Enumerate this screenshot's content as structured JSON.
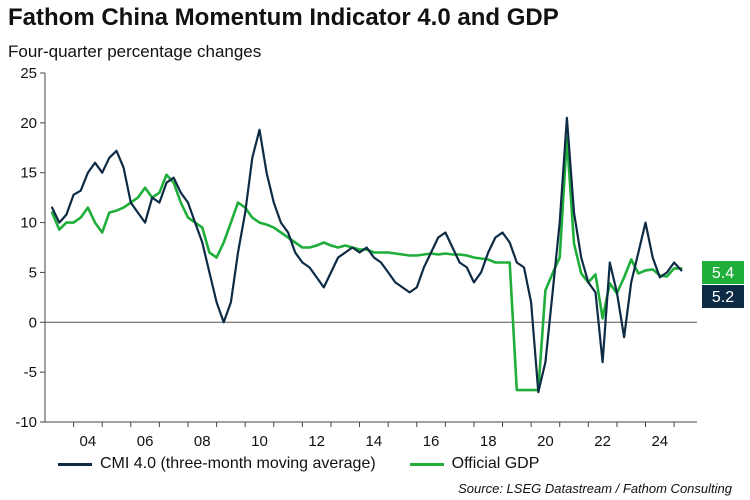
{
  "chart_data": {
    "type": "line",
    "title": "Fathom China Momentum Indicator 4.0 and GDP",
    "subtitle": "Four-quarter percentage changes",
    "xlabel": "",
    "ylabel": "",
    "xlim": [
      2003,
      2025.8
    ],
    "ylim": [
      -10,
      25
    ],
    "yticks": [
      -10,
      -5,
      0,
      5,
      10,
      15,
      20,
      25
    ],
    "xticks": [
      2004,
      2006,
      2008,
      2010,
      2012,
      2014,
      2016,
      2018,
      2020,
      2022,
      2024
    ],
    "xtick_labels": [
      "04",
      "06",
      "08",
      "10",
      "12",
      "14",
      "16",
      "18",
      "20",
      "22",
      "24"
    ],
    "legend_position": "bottom",
    "source": "Source: LSEG Datastream / Fathom Consulting",
    "series": [
      {
        "name": "CMI 4.0 (three-month moving average)",
        "color": "#0d2b45",
        "end_label": "5.2",
        "points": [
          [
            2003.25,
            11.5
          ],
          [
            2003.5,
            10.0
          ],
          [
            2003.75,
            10.8
          ],
          [
            2004.0,
            12.8
          ],
          [
            2004.25,
            13.2
          ],
          [
            2004.5,
            15.0
          ],
          [
            2004.75,
            16.0
          ],
          [
            2005.0,
            15.0
          ],
          [
            2005.25,
            16.5
          ],
          [
            2005.5,
            17.2
          ],
          [
            2005.75,
            15.5
          ],
          [
            2006.0,
            12.0
          ],
          [
            2006.25,
            11.0
          ],
          [
            2006.5,
            10.0
          ],
          [
            2006.75,
            12.5
          ],
          [
            2007.0,
            12.0
          ],
          [
            2007.25,
            14.0
          ],
          [
            2007.5,
            14.5
          ],
          [
            2007.75,
            13.0
          ],
          [
            2008.0,
            12.0
          ],
          [
            2008.25,
            10.0
          ],
          [
            2008.5,
            8.0
          ],
          [
            2008.75,
            5.0
          ],
          [
            2009.0,
            2.0
          ],
          [
            2009.25,
            0.0
          ],
          [
            2009.5,
            2.0
          ],
          [
            2009.75,
            7.0
          ],
          [
            2010.0,
            11.0
          ],
          [
            2010.25,
            16.5
          ],
          [
            2010.5,
            19.3
          ],
          [
            2010.75,
            15.0
          ],
          [
            2011.0,
            12.0
          ],
          [
            2011.25,
            10.0
          ],
          [
            2011.5,
            9.0
          ],
          [
            2011.75,
            7.0
          ],
          [
            2012.0,
            6.0
          ],
          [
            2012.25,
            5.5
          ],
          [
            2012.5,
            4.5
          ],
          [
            2012.75,
            3.5
          ],
          [
            2013.0,
            5.0
          ],
          [
            2013.25,
            6.5
          ],
          [
            2013.5,
            7.0
          ],
          [
            2013.75,
            7.5
          ],
          [
            2014.0,
            7.0
          ],
          [
            2014.25,
            7.5
          ],
          [
            2014.5,
            6.5
          ],
          [
            2014.75,
            6.0
          ],
          [
            2015.0,
            5.0
          ],
          [
            2015.25,
            4.0
          ],
          [
            2015.5,
            3.5
          ],
          [
            2015.75,
            3.0
          ],
          [
            2016.0,
            3.5
          ],
          [
            2016.25,
            5.5
          ],
          [
            2016.5,
            7.0
          ],
          [
            2016.75,
            8.5
          ],
          [
            2017.0,
            9.0
          ],
          [
            2017.25,
            7.5
          ],
          [
            2017.5,
            6.0
          ],
          [
            2017.75,
            5.5
          ],
          [
            2018.0,
            4.0
          ],
          [
            2018.25,
            5.0
          ],
          [
            2018.5,
            7.0
          ],
          [
            2018.75,
            8.5
          ],
          [
            2019.0,
            9.0
          ],
          [
            2019.25,
            8.0
          ],
          [
            2019.5,
            6.0
          ],
          [
            2019.75,
            5.5
          ],
          [
            2020.0,
            2.0
          ],
          [
            2020.25,
            -7.0
          ],
          [
            2020.5,
            -4.0
          ],
          [
            2020.75,
            3.0
          ],
          [
            2021.0,
            10.0
          ],
          [
            2021.25,
            20.5
          ],
          [
            2021.5,
            11.0
          ],
          [
            2021.75,
            6.5
          ],
          [
            2022.0,
            4.0
          ],
          [
            2022.25,
            3.0
          ],
          [
            2022.5,
            -4.0
          ],
          [
            2022.75,
            6.0
          ],
          [
            2023.0,
            3.0
          ],
          [
            2023.25,
            -1.5
          ],
          [
            2023.5,
            4.0
          ],
          [
            2023.75,
            7.0
          ],
          [
            2024.0,
            10.0
          ],
          [
            2024.25,
            6.5
          ],
          [
            2024.5,
            4.5
          ],
          [
            2024.75,
            5.0
          ],
          [
            2025.0,
            6.0
          ],
          [
            2025.25,
            5.2
          ]
        ]
      },
      {
        "name": "Official GDP",
        "color": "#1fae3a",
        "end_label": "5.4",
        "points": [
          [
            2003.25,
            11.0
          ],
          [
            2003.5,
            9.3
          ],
          [
            2003.75,
            10.0
          ],
          [
            2004.0,
            10.0
          ],
          [
            2004.25,
            10.5
          ],
          [
            2004.5,
            11.5
          ],
          [
            2004.75,
            10.0
          ],
          [
            2005.0,
            9.0
          ],
          [
            2005.25,
            11.0
          ],
          [
            2005.5,
            11.2
          ],
          [
            2005.75,
            11.5
          ],
          [
            2006.0,
            12.0
          ],
          [
            2006.25,
            12.5
          ],
          [
            2006.5,
            13.5
          ],
          [
            2006.75,
            12.5
          ],
          [
            2007.0,
            13.0
          ],
          [
            2007.25,
            14.8
          ],
          [
            2007.5,
            14.0
          ],
          [
            2007.75,
            12.0
          ],
          [
            2008.0,
            10.5
          ],
          [
            2008.25,
            10.0
          ],
          [
            2008.5,
            9.5
          ],
          [
            2008.75,
            7.0
          ],
          [
            2009.0,
            6.5
          ],
          [
            2009.25,
            8.0
          ],
          [
            2009.5,
            10.0
          ],
          [
            2009.75,
            12.0
          ],
          [
            2010.0,
            11.5
          ],
          [
            2010.25,
            10.5
          ],
          [
            2010.5,
            10.0
          ],
          [
            2010.75,
            9.8
          ],
          [
            2011.0,
            9.5
          ],
          [
            2011.25,
            9.0
          ],
          [
            2011.5,
            8.5
          ],
          [
            2011.75,
            8.0
          ],
          [
            2012.0,
            7.5
          ],
          [
            2012.25,
            7.5
          ],
          [
            2012.5,
            7.7
          ],
          [
            2012.75,
            8.0
          ],
          [
            2013.0,
            7.7
          ],
          [
            2013.25,
            7.5
          ],
          [
            2013.5,
            7.7
          ],
          [
            2013.75,
            7.5
          ],
          [
            2014.0,
            7.3
          ],
          [
            2014.25,
            7.3
          ],
          [
            2014.5,
            7.0
          ],
          [
            2014.75,
            7.0
          ],
          [
            2015.0,
            7.0
          ],
          [
            2015.25,
            6.9
          ],
          [
            2015.5,
            6.8
          ],
          [
            2015.75,
            6.7
          ],
          [
            2016.0,
            6.7
          ],
          [
            2016.25,
            6.8
          ],
          [
            2016.5,
            6.9
          ],
          [
            2016.75,
            6.8
          ],
          [
            2017.0,
            6.9
          ],
          [
            2017.25,
            6.8
          ],
          [
            2017.5,
            6.8
          ],
          [
            2017.75,
            6.7
          ],
          [
            2018.0,
            6.5
          ],
          [
            2018.25,
            6.4
          ],
          [
            2018.5,
            6.3
          ],
          [
            2018.75,
            6.0
          ],
          [
            2019.0,
            6.0
          ],
          [
            2019.25,
            6.0
          ],
          [
            2019.5,
            -6.8
          ],
          [
            2020.25,
            -6.8
          ],
          [
            2020.5,
            3.2
          ],
          [
            2020.75,
            4.9
          ],
          [
            2021.0,
            6.5
          ],
          [
            2021.25,
            18.5
          ],
          [
            2021.5,
            7.9
          ],
          [
            2021.75,
            4.9
          ],
          [
            2022.0,
            4.0
          ],
          [
            2022.25,
            4.8
          ],
          [
            2022.5,
            0.4
          ],
          [
            2022.75,
            3.9
          ],
          [
            2023.0,
            2.9
          ],
          [
            2023.25,
            4.5
          ],
          [
            2023.5,
            6.3
          ],
          [
            2023.75,
            4.9
          ],
          [
            2024.0,
            5.2
          ],
          [
            2024.25,
            5.3
          ],
          [
            2024.5,
            4.7
          ],
          [
            2024.75,
            4.6
          ],
          [
            2025.0,
            5.4
          ],
          [
            2025.25,
            5.4
          ]
        ]
      }
    ]
  }
}
